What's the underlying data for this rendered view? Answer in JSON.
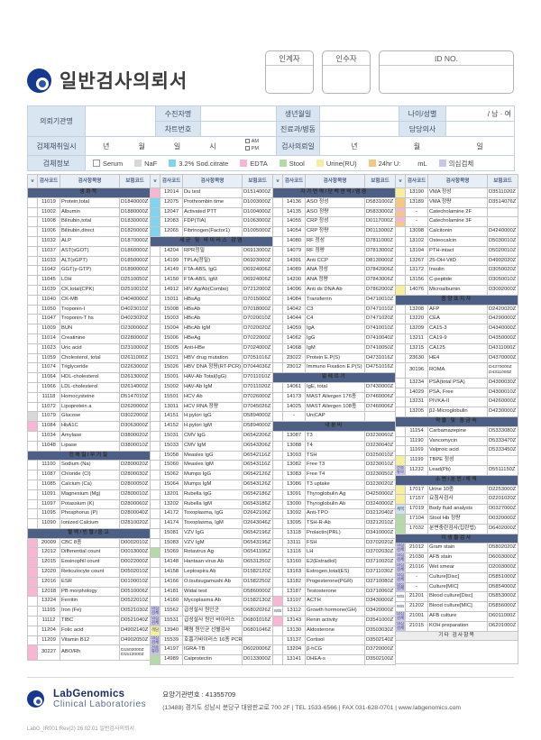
{
  "title": "일반검사의뢰서",
  "top_boxes": {
    "handover": "인계자",
    "receiver": "인수자",
    "id_no": "ID NO."
  },
  "info": {
    "org_label": "의뢰기관명",
    "patient_label": "수진자명",
    "chart_label": "차트번호",
    "birth_label": "생년월일",
    "dept_label": "진료과/병동",
    "age_sex_label": "나이/성별",
    "age_sex_value": "/ 남 · 여",
    "doctor_label": "담당의사",
    "collect_label": "검체채취일시",
    "units": {
      "y": "년",
      "m": "월",
      "d": "일",
      "h": "시",
      "am": "AM",
      "pm": "PM"
    },
    "request_label": "검사의뢰일",
    "specimen_label": "검체정보"
  },
  "legend": [
    {
      "label": "Serum",
      "color": "#ffffff",
      "border": true
    },
    {
      "label": "NaF",
      "color": "#d8d8d8"
    },
    {
      "label": "3.2% Sod.citrate",
      "color": "#7fd4ef"
    },
    {
      "label": "EDTA",
      "color": "#f7b6d3"
    },
    {
      "label": "Stool",
      "color": "#b5d9a8"
    },
    {
      "label": "Urine(RU)",
      "color": "#f6ef9e"
    },
    {
      "label": "24hr U:",
      "suffix": "mL",
      "color": "#f3c97f"
    },
    {
      "label": "의심검체",
      "color": "#c9c6ea"
    }
  ],
  "table": {
    "headers": {
      "check": "v",
      "code": "검사코드",
      "name": "검사항목명",
      "ins": "보험코드"
    },
    "chips": {
      "gray": "#d8d8d8",
      "blue": "#7fd4ef",
      "pink": "#f7b6d3",
      "green": "#b5d9a8",
      "yellow": "#f6ef9e",
      "orange": "#f3c97f",
      "lav": "#c9c6ea",
      "ct": "#cfe3f0",
      "wb": "#ffffff",
      "po": "split-pink-orange"
    },
    "columns": [
      [
        [
          "#sec",
          "생화학"
        ],
        [
          "11019",
          "Protein,total",
          "D1840000Z"
        ],
        [
          "11002",
          "Albumin",
          "D1880000Z"
        ],
        [
          "11008",
          "Bilirubin,total",
          "D1830000Z"
        ],
        [
          "11006",
          "Bilirubin,direct",
          "D1820000Z"
        ],
        [
          "11032",
          "ALP",
          "D1870000Z"
        ],
        [
          "11037",
          "AST(sGOT)",
          "D1860000Z"
        ],
        [
          "11033",
          "ALT(sGPT)",
          "D1850000Z"
        ],
        [
          "11042",
          "GGT(γ-GTP)",
          "D1890000Z"
        ],
        [
          "11045",
          "LDH",
          "D2510050Z"
        ],
        [
          "11039",
          "CK,total(CPK)",
          "D2510010Z"
        ],
        [
          "11040",
          "CK-MB",
          "D4040000Z"
        ],
        [
          "11050",
          "Troponin-I",
          "D4023010Z"
        ],
        [
          "11047",
          "Troponin-T hs",
          "D4023020Z"
        ],
        [
          "11009",
          "BUN",
          "D2300000Z"
        ],
        [
          "11014",
          "Creatinine",
          "D2280000Z"
        ],
        [
          "11023",
          "Uric acid",
          "D2310000Z"
        ],
        [
          "11059",
          "Cholesterol, total",
          "D2611000Z"
        ],
        [
          "11074",
          "Triglyceride",
          "D2263000Z"
        ],
        [
          "11064",
          "HDL-cholesterol",
          "D2613000Z"
        ],
        [
          "11066",
          "LDL-cholesterol",
          "D2614000Z"
        ],
        [
          "11118",
          "Homocysteine",
          "D5147010Z"
        ],
        [
          "11072",
          "Lipoprotein a",
          "D2620000Z"
        ],
        [
          "11079",
          "Glucose",
          "D3022000Z",
          "gray"
        ],
        [
          "11084",
          "HbA1C",
          "D3063000Z",
          "pink"
        ],
        [
          "11034",
          "Amylase",
          "D3800020Z"
        ],
        [
          "11048",
          "Lipase",
          "D3800010Z"
        ],
        [
          "#sec",
          "전해질/무기질"
        ],
        [
          "11100",
          "Sodium (Na)",
          "D2800020Z"
        ],
        [
          "11087",
          "Chloride (Cl)",
          "D2800030Z"
        ],
        [
          "11085",
          "Calcium (Ca)",
          "D2800050Z"
        ],
        [
          "11091",
          "Magnesium (Mg)",
          "D2800010Z"
        ],
        [
          "11097",
          "Potassium (K)",
          "D2800060Z"
        ],
        [
          "11095",
          "Phosphorus (P)",
          "D2800040Z"
        ],
        [
          "11090",
          "Ionized Calcium",
          "D2810020Z"
        ],
        [
          "#sec",
          "혈액/빈혈/응고"
        ],
        [
          "20009",
          "CBC 8종",
          "D0002010Z",
          "pink"
        ],
        [
          "12012",
          "Differential count",
          "D0013000Z",
          "pink"
        ],
        [
          "12015",
          "Eosinophil count",
          "D0022000Z",
          "pink"
        ],
        [
          "12020",
          "Reticulocyte count",
          "D0502010Z",
          "pink"
        ],
        [
          "12016",
          "ESR",
          "D0100010Z",
          "pink"
        ],
        [
          "12018",
          "PB morphology",
          "D0510006Z",
          "pink"
        ],
        [
          "13224",
          "Ferritin",
          "D0522010Z"
        ],
        [
          "11105",
          "Iron (Fe)",
          "D0521030Z"
        ],
        [
          "11112",
          "TIBC",
          "D0521040Z"
        ],
        [
          "11204",
          "Folic acid",
          "D4902140Z"
        ],
        [
          "11209",
          "Vitamin B12",
          "D4902050Z"
        ],
        [
          "30227",
          "ABO/Rh",
          "D1502000Z|D1512000Z",
          "pink",
          "",
          2
        ]
      ],
      [
        [
          "12014",
          "Du test",
          "D1514000Z",
          "pink"
        ],
        [
          "12075",
          "Prothrombin time",
          "D1003000Z",
          "blue"
        ],
        [
          "12047",
          "Activated PTT",
          "D1004000Z",
          "blue"
        ],
        [
          "12083",
          "FDP(TIA)",
          "D1063000Z",
          "blue"
        ],
        [
          "12065",
          "Fibrinogen(Factor1)",
          "D1005000Z",
          "blue"
        ],
        [
          "#sec",
          "세균 및 바이러스 감염"
        ],
        [
          "14204",
          "RPR정밀",
          "D6913000Z"
        ],
        [
          "14199",
          "TPLA(정밀)",
          "D6923000Z"
        ],
        [
          "14149",
          "FTA-ABS, IgG",
          "D6924006Z"
        ],
        [
          "14150",
          "FTA-ABS, IgM",
          "D6924006Z"
        ],
        [
          "14912",
          "HIV Ag/Ab(Combo)",
          "D7212000Z"
        ],
        [
          "15011",
          "HBsAg",
          "D7015000Z"
        ],
        [
          "15008",
          "HBsAb",
          "D7018000Z"
        ],
        [
          "15003",
          "HBcAb",
          "D7020010Z"
        ],
        [
          "15004",
          "HBcAb IgM",
          "D7020020Z"
        ],
        [
          "15006",
          "HBeAg",
          "D7022000Z"
        ],
        [
          "15005",
          "Anti-HBe",
          "D7024000Z"
        ],
        [
          "15021",
          "HBV drug mutation",
          "D7051016Z"
        ],
        [
          "15026",
          "HBV DNA 정량(RT-PCR)",
          "D7044036Z"
        ],
        [
          "15001",
          "HAV-Ab Total(IgG)",
          "D7011010Z"
        ],
        [
          "15002",
          "HAV-Ab IgM",
          "D7011020Z"
        ],
        [
          "15501",
          "HCV Ab",
          "D7026000Z"
        ],
        [
          "13011",
          "HCV RNA 정량",
          "D7045026Z"
        ],
        [
          "14151",
          "H.pylori IgG",
          "D5894000Z"
        ],
        [
          "14152",
          "H.pylori IgM",
          "D5894000Z"
        ],
        [
          "15031",
          "CMV IgG",
          "D6542206Z"
        ],
        [
          "15033",
          "CMV IgM",
          "D6543206Z"
        ],
        [
          "15058",
          "Measles IgG",
          "D6542116Z"
        ],
        [
          "15060",
          "Measles IgM",
          "D6543116Z"
        ],
        [
          "15062",
          "Mumps IgG",
          "D6542126Z"
        ],
        [
          "15064",
          "Mumps IgM",
          "D6543126Z"
        ],
        [
          "13201",
          "Rubella IgG",
          "D6542186Z"
        ],
        [
          "13202",
          "Rubella IgM",
          "D6543186Z"
        ],
        [
          "14172",
          "Toxoplasma, IgG",
          "D2642106Z"
        ],
        [
          "14174",
          "Toxoplasma, IgM",
          "D2643046Z"
        ],
        [
          "15081",
          "VZV IgG",
          "D6542196Z"
        ],
        [
          "15083",
          "VZV IgM",
          "D6543196Z"
        ],
        [
          "15069",
          "Rotavirus Ag",
          "D6541106Z",
          "green"
        ],
        [
          "14148",
          "Hantaan virus Ab",
          "D6531250Z"
        ],
        [
          "14158",
          "Leptospira Ab",
          "D1582120Z"
        ],
        [
          "14166",
          "O.tsutsugamushi Ab",
          "D1582250Z"
        ],
        [
          "14181",
          "Widal test",
          "D5860000Z"
        ],
        [
          "14160",
          "Mycoplasma Ab",
          "D1582130Z"
        ],
        [
          "15562",
          "급성설사 원인군",
          "D6802026Z",
          "lav",
          "의심검체"
        ],
        [
          "15531",
          "급성설사 원인 바이러스",
          "D6801016Z",
          "lav",
          "의심검체"
        ],
        [
          "13940",
          "폐렴 원인균 선별검사",
          "D6801046Z",
          "yellow",
          "객담"
        ],
        [
          "15539",
          "호흡기바이러스 16종 PCR",
          "",
          "lav",
          "의심검체"
        ],
        [
          "14197",
          "IGRA-TB",
          "D6020006Z",
          "lav",
          "전용튜브"
        ],
        [
          "14989",
          "Calprotectin",
          "D0133000Z",
          "green"
        ]
      ],
      [
        [
          "#sec",
          "자가면역/단백면역/염증"
        ],
        [
          "14136",
          "ASO 정성",
          "D5831000Z"
        ],
        [
          "14135",
          "ASO 정량",
          "D5833000Z"
        ],
        [
          "14055",
          "CRP 정성",
          "D0117000Z"
        ],
        [
          "14054",
          "CRP 정량",
          "D0113000Z"
        ],
        [
          "14080",
          "RF 정성",
          "D7811000Z"
        ],
        [
          "14079",
          "RF 정량",
          "D7813000Z"
        ],
        [
          "14301",
          "Anti CCP",
          "D8130000Z"
        ],
        [
          "14089",
          "ANA 정성",
          "D7842006Z"
        ],
        [
          "14200",
          "ANA 정량",
          "D7843006Z"
        ],
        [
          "14096",
          "Anti ds DNA Ab",
          "D7862000Z"
        ],
        [
          "14084",
          "Transferrin",
          "D4710010Z"
        ],
        [
          "14042",
          "C3",
          "D7471010Z"
        ],
        [
          "14044",
          "C4",
          "D7471020Z"
        ],
        [
          "14059",
          "IgA",
          "D7410010Z"
        ],
        [
          "14062",
          "IgG",
          "D7410040Z"
        ],
        [
          "14068",
          "IgM",
          "D7410050Z"
        ],
        [
          "23022",
          "Protein E.P(S)",
          "D4731016Z"
        ],
        [
          "23012",
          "Immuno Fixation E.P(S)",
          "D4751016Z"
        ],
        [
          "#sec",
          "알레르기"
        ],
        [
          "14061",
          "IgE, total",
          "D7430000Z"
        ],
        [
          "14173",
          "MAST Allergen 176종",
          "D7460006Z"
        ],
        [
          "14025",
          "MAST Allergen 108종",
          "D7460006Z"
        ],
        [
          "-",
          "UniCAP",
          ""
        ],
        [
          "#sec",
          "내분비"
        ],
        [
          "13087",
          "T3",
          "D3230060Z"
        ],
        [
          "13088",
          "T4",
          "D3230040Z"
        ],
        [
          "13093",
          "TSH",
          "D3250010Z"
        ],
        [
          "13082",
          "Free T3",
          "D3230010Z"
        ],
        [
          "13083",
          "Free T4",
          "D3230050Z"
        ],
        [
          "13086",
          "T3 uptake",
          "D3230020Z"
        ],
        [
          "13091",
          "Thyroglobulin Ag",
          "D4250000Z"
        ],
        [
          "13090",
          "Thyroglobulin Ab",
          "D3240000Z"
        ],
        [
          "13092",
          "Anti-TPO",
          "D3212040Z"
        ],
        [
          "13095",
          "TSH-R-Ab",
          "D3212010Z"
        ],
        [
          "13118",
          "Prolactin(PRL)",
          "D3410000Z"
        ],
        [
          "13111",
          "FSH",
          "D3702020Z"
        ],
        [
          "13116",
          "LH",
          "D3702030Z"
        ],
        [
          "13160",
          "E2(Estradiol)",
          "D3710020Z"
        ],
        [
          "13163",
          "Estrogen,total(ES)",
          "D3711030Z"
        ],
        [
          "13182",
          "Progesterone(PGR)",
          "D3710080Z"
        ],
        [
          "13187",
          "Testosterone",
          "D3710060Z"
        ],
        [
          "13107",
          "ACTH",
          "D3430000Z",
          "pink"
        ],
        [
          "13112",
          "Growth hormone(GH)",
          "D3420000Z",
          "wb",
          "W/B"
        ],
        [
          "13143",
          "Renin activity",
          "D3541000Z",
          "pink"
        ],
        [
          "13130",
          "Aldosterone",
          "D3503030Z"
        ],
        [
          "13137",
          "Cortisol",
          "D3502140Z"
        ],
        [
          "13204",
          "β-hCG",
          "D3720000Z"
        ],
        [
          "13141",
          "DHEA-s",
          "D3502100Z"
        ]
      ],
      [
        [
          "13190",
          "VMA 정성",
          "D3511020Z",
          "yellow"
        ],
        [
          "13189",
          "VMA 정량",
          "D3514076Z",
          "orange"
        ],
        [
          "-",
          "Catecholamine 2F",
          "",
          "po"
        ],
        [
          "-",
          "Catecholamine 3F",
          "",
          "po"
        ],
        [
          "13098",
          "Calcitonin",
          "D4240000Z"
        ],
        [
          "13102",
          "Osteocalcin",
          "D5030010Z"
        ],
        [
          "13104",
          "PTH-intact",
          "D5020010Z"
        ],
        [
          "13267",
          "25-OH-VitD",
          "D4902020Z"
        ],
        [
          "13172",
          "Insulin",
          "D3050020Z"
        ],
        [
          "13156",
          "C-peptide",
          "D3050010Z"
        ],
        [
          "14076",
          "Microalbumin",
          "D3002000Z",
          "yellow"
        ],
        [
          "#sec",
          "종양표지자"
        ],
        [
          "13208",
          "AFP",
          "D2420020Z"
        ],
        [
          "13220",
          "CEA",
          "D4290000Z"
        ],
        [
          "13209",
          "CA15-3",
          "D4340000Z"
        ],
        [
          "13211",
          "CA19-9",
          "D4350000Z"
        ],
        [
          "13215",
          "CA125",
          "D4311000Z"
        ],
        [
          "23630",
          "HE4",
          "D4370000Z"
        ],
        [
          "30196",
          "ROMA",
          "D4370000Z|D4311000Z",
          "",
          "",
          2
        ],
        [
          "13234",
          "PSA(total PSA)",
          "D4300030Z"
        ],
        [
          "14029",
          "PSA, Free",
          "D4300010Z"
        ],
        [
          "13231",
          "PIVKA-II",
          "D4260000Z"
        ],
        [
          "13205",
          "β2-Microglobulin",
          "D4230000Z"
        ],
        [
          "#sec",
          "약물 및 중금속"
        ],
        [
          "11154",
          "Carbamazepine",
          "D5333080Z"
        ],
        [
          "11190",
          "Vancomycin",
          "D5333470Z"
        ],
        [
          "11169",
          "Valproic acid",
          "D5333450Z"
        ],
        [
          "11199",
          "TBPE 정성",
          "",
          "yellow"
        ],
        [
          "11232",
          "Lead(Pb)",
          "D5511150Z",
          "lav",
          "전용튜브"
        ],
        [
          "#sec",
          "소변/분변/체액"
        ],
        [
          "17017",
          "Urine 10종",
          "D2253000Z",
          "yellow"
        ],
        [
          "17157",
          "요침사검사",
          "D2201020Z",
          "yellow"
        ],
        [
          "17019",
          "Body fluid analysis",
          "D0327000Z",
          "ct",
          "체액"
        ],
        [
          "17104",
          "Stool Hb 정량",
          "D0320000Z",
          "green"
        ],
        [
          "17032",
          "분변충란검사(집란법)",
          "D6402000Z",
          "green"
        ],
        [
          "#sec",
          "미생물검사"
        ],
        [
          "21012",
          "Gram stain",
          "D5802020Z",
          "lav",
          "의심검체"
        ],
        [
          "21030",
          "AFB stain",
          "D6003000Z",
          "lav",
          "의심검체"
        ],
        [
          "21016",
          "Wet smear",
          "D2003000Z",
          "lav",
          "의심검체"
        ],
        [
          "-",
          "Culture[Disc]",
          "D5851000Z",
          "lav",
          "의심검체"
        ],
        [
          "-",
          "Culture[MIC]",
          "D5854000Z",
          "lav",
          "의심검체"
        ],
        [
          "21201",
          "Blood culture[Disc]",
          "D5853000Z",
          "wb",
          "W/B"
        ],
        [
          "21202",
          "Blood culture[MIC]",
          "D5856000Z",
          "wb",
          "W/B"
        ],
        [
          "21001",
          "AFB culture",
          "D6011000Z",
          "lav",
          "의심검체"
        ],
        [
          "21015",
          "KOH preparation",
          "D6201000Z",
          "lav",
          "의심검체"
        ],
        [
          "#secl",
          "기타 검사항목"
        ],
        [
          "#space"
        ]
      ]
    ]
  },
  "footer": {
    "brand": "LabGenomics",
    "brand_sub": "Clinical Laboratories",
    "org_no": "요양기관번호 : 41355709",
    "address": "(13488) 경기도 성남시 분당구 대왕판교로 700 2F  |  TEL 1533-6566  |  FAX 031-628-0701  |  www.labgenomics.com",
    "doc_id": "LabG_IR001 Rev(2) 26.02.01 일반검사의뢰서"
  }
}
